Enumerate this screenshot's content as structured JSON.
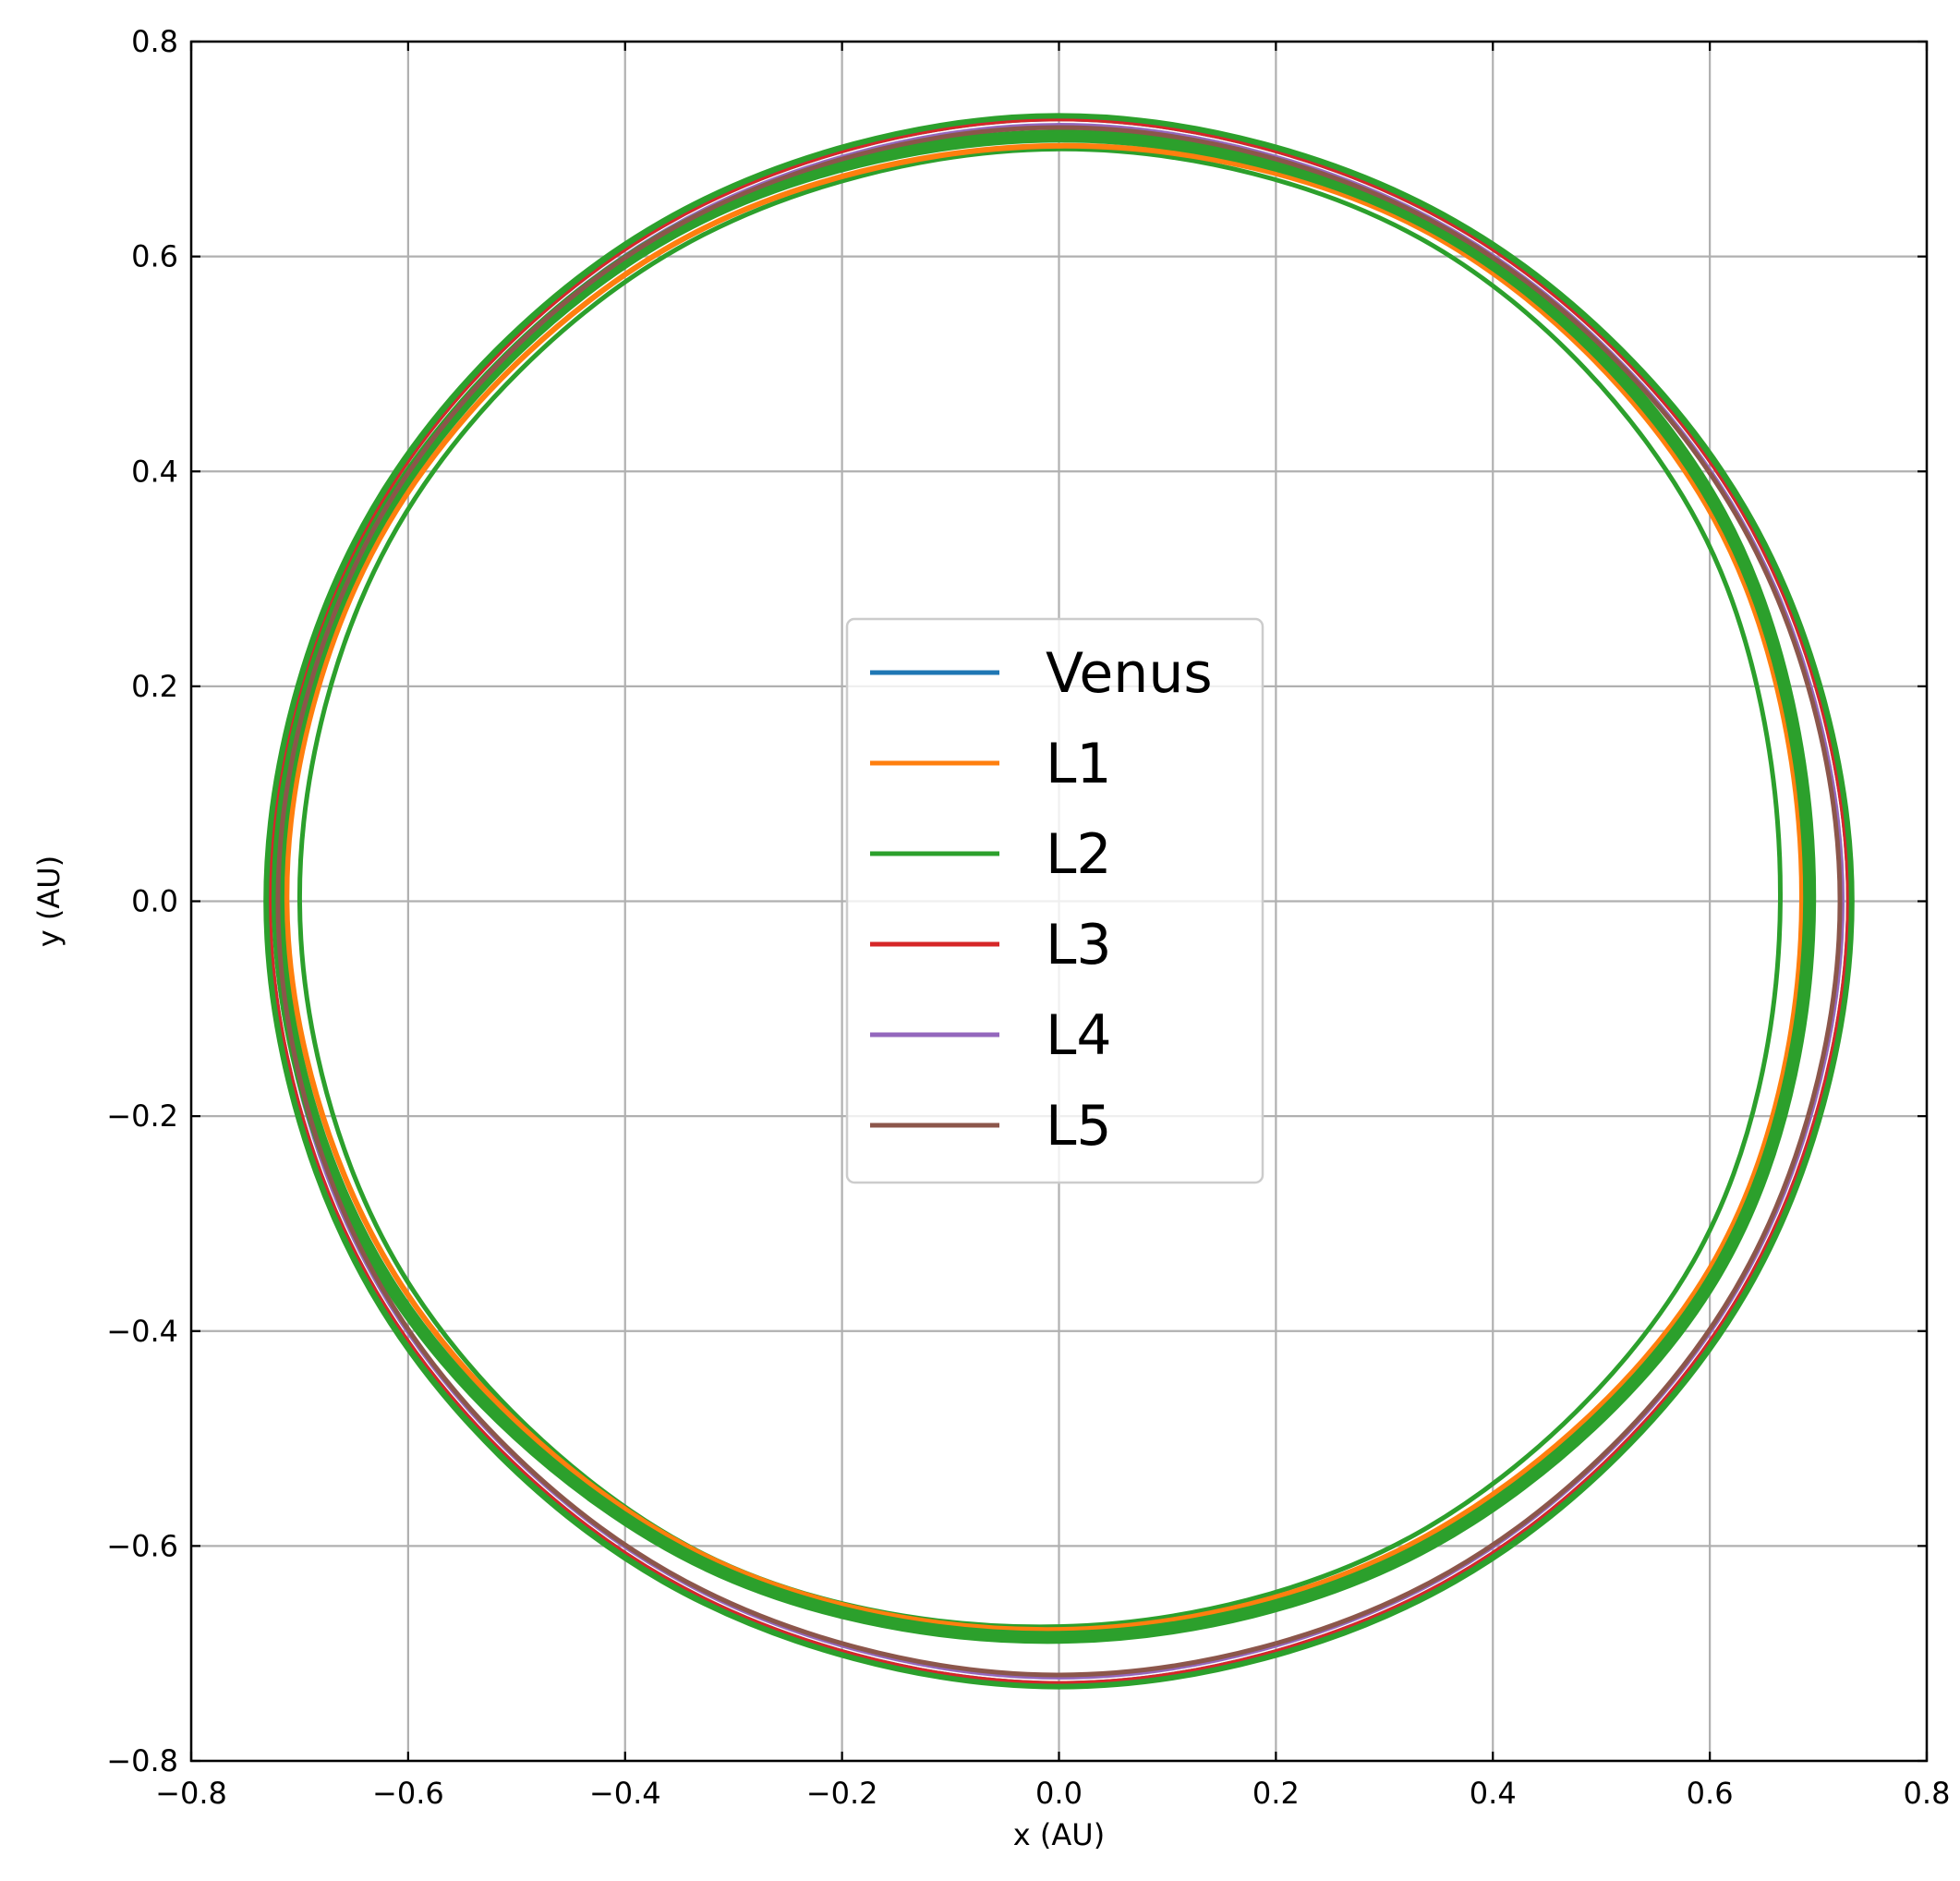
{
  "chart_data": {
    "type": "line",
    "title": "",
    "xlabel": "x (AU)",
    "ylabel": "y (AU)",
    "xlim": [
      -0.8,
      0.8
    ],
    "ylim": [
      -0.8,
      0.8
    ],
    "xticks": [
      -0.8,
      -0.6,
      -0.4,
      -0.2,
      0.0,
      0.2,
      0.4,
      0.6,
      0.8
    ],
    "yticks": [
      -0.8,
      -0.6,
      -0.4,
      -0.2,
      0.0,
      0.2,
      0.4,
      0.6,
      0.8
    ],
    "xtick_labels": [
      "−0.8",
      "−0.6",
      "−0.4",
      "−0.2",
      "0.0",
      "0.2",
      "0.4",
      "0.6",
      "0.8"
    ],
    "ytick_labels": [
      "−0.8",
      "−0.6",
      "−0.4",
      "−0.2",
      "0.0",
      "0.2",
      "0.4",
      "0.6",
      "0.8"
    ],
    "grid": true,
    "legend_position": "center",
    "series": [
      {
        "name": "Venus",
        "color": "#1f77b4",
        "line_width": 3,
        "x": [
          0.727,
          0.629,
          0.363,
          0.0,
          -0.363,
          -0.629,
          -0.727,
          -0.629,
          -0.363,
          0.0,
          0.363,
          0.629,
          0.727
        ],
        "y": [
          0.0,
          0.363,
          0.629,
          0.727,
          0.629,
          0.363,
          0.0,
          -0.363,
          -0.629,
          -0.727,
          -0.629,
          -0.363,
          0.0
        ]
      },
      {
        "name": "L1",
        "color": "#ff7f0e",
        "line_width": 6,
        "x": [
          0.685,
          0.604,
          0.35,
          0.0,
          -0.354,
          -0.618,
          -0.712,
          -0.612,
          -0.344,
          0.0,
          0.34,
          0.6,
          0.685
        ],
        "y": [
          0.0,
          0.356,
          0.617,
          0.703,
          0.612,
          0.352,
          0.0,
          -0.348,
          -0.6,
          -0.678,
          -0.59,
          -0.342,
          0.0
        ]
      },
      {
        "name": "L2",
        "color": "#2ca02c",
        "line_width": 14,
        "x": [
          0.692,
          0.61,
          0.355,
          0.0,
          -0.36,
          -0.625,
          -0.72,
          -0.62,
          -0.348,
          0.0,
          0.344,
          0.606,
          0.692
        ],
        "y": [
          0.0,
          0.36,
          0.622,
          0.712,
          0.62,
          0.356,
          0.0,
          -0.352,
          -0.606,
          -0.685,
          -0.597,
          -0.346,
          0.0
        ]
      },
      {
        "name": "L3",
        "color": "#d62728",
        "line_width": 3,
        "x": [
          0.727,
          0.629,
          0.363,
          0.0,
          -0.363,
          -0.629,
          -0.727,
          -0.629,
          -0.363,
          0.0,
          0.363,
          0.629,
          0.727
        ],
        "y": [
          0.0,
          0.363,
          0.629,
          0.727,
          0.629,
          0.363,
          0.0,
          -0.363,
          -0.629,
          -0.727,
          -0.629,
          -0.363,
          0.0
        ]
      },
      {
        "name": "L4",
        "color": "#9467bd",
        "line_width": 3,
        "x": [
          0.723,
          0.626,
          0.361,
          0.0,
          -0.361,
          -0.626,
          -0.723,
          -0.626,
          -0.361,
          0.0,
          0.361,
          0.626,
          0.723
        ],
        "y": [
          0.0,
          0.361,
          0.626,
          0.723,
          0.626,
          0.361,
          0.0,
          -0.361,
          -0.626,
          -0.723,
          -0.626,
          -0.361,
          0.0
        ]
      },
      {
        "name": "L5",
        "color": "#8c564b",
        "line_width": 5,
        "x": [
          0.72,
          0.624,
          0.36,
          0.0,
          -0.36,
          -0.624,
          -0.72,
          -0.624,
          -0.36,
          0.0,
          0.36,
          0.624,
          0.72
        ],
        "y": [
          0.0,
          0.36,
          0.624,
          0.72,
          0.624,
          0.36,
          0.0,
          -0.36,
          -0.624,
          -0.72,
          -0.624,
          -0.36,
          0.0
        ]
      }
    ],
    "extra_orbits": [
      {
        "series": "L2",
        "color": "#2ca02c",
        "line_width": 8,
        "x": [
          0.73,
          0.632,
          0.365,
          0.0,
          -0.365,
          -0.632,
          -0.73,
          -0.632,
          -0.365,
          0.0,
          0.365,
          0.632,
          0.73
        ],
        "y": [
          0.0,
          0.365,
          0.632,
          0.73,
          0.632,
          0.365,
          0.0,
          -0.365,
          -0.632,
          -0.73,
          -0.632,
          -0.365,
          0.0
        ]
      },
      {
        "series": "L2",
        "color": "#2ca02c",
        "line_width": 5,
        "x": [
          0.665,
          0.59,
          0.345,
          0.0,
          -0.352,
          -0.61,
          -0.7,
          -0.606,
          -0.342,
          0.0,
          0.336,
          0.585,
          0.665
        ],
        "y": [
          0.0,
          0.35,
          0.61,
          0.7,
          0.607,
          0.348,
          0.0,
          -0.345,
          -0.6,
          -0.675,
          -0.585,
          -0.335,
          0.0
        ]
      }
    ]
  }
}
